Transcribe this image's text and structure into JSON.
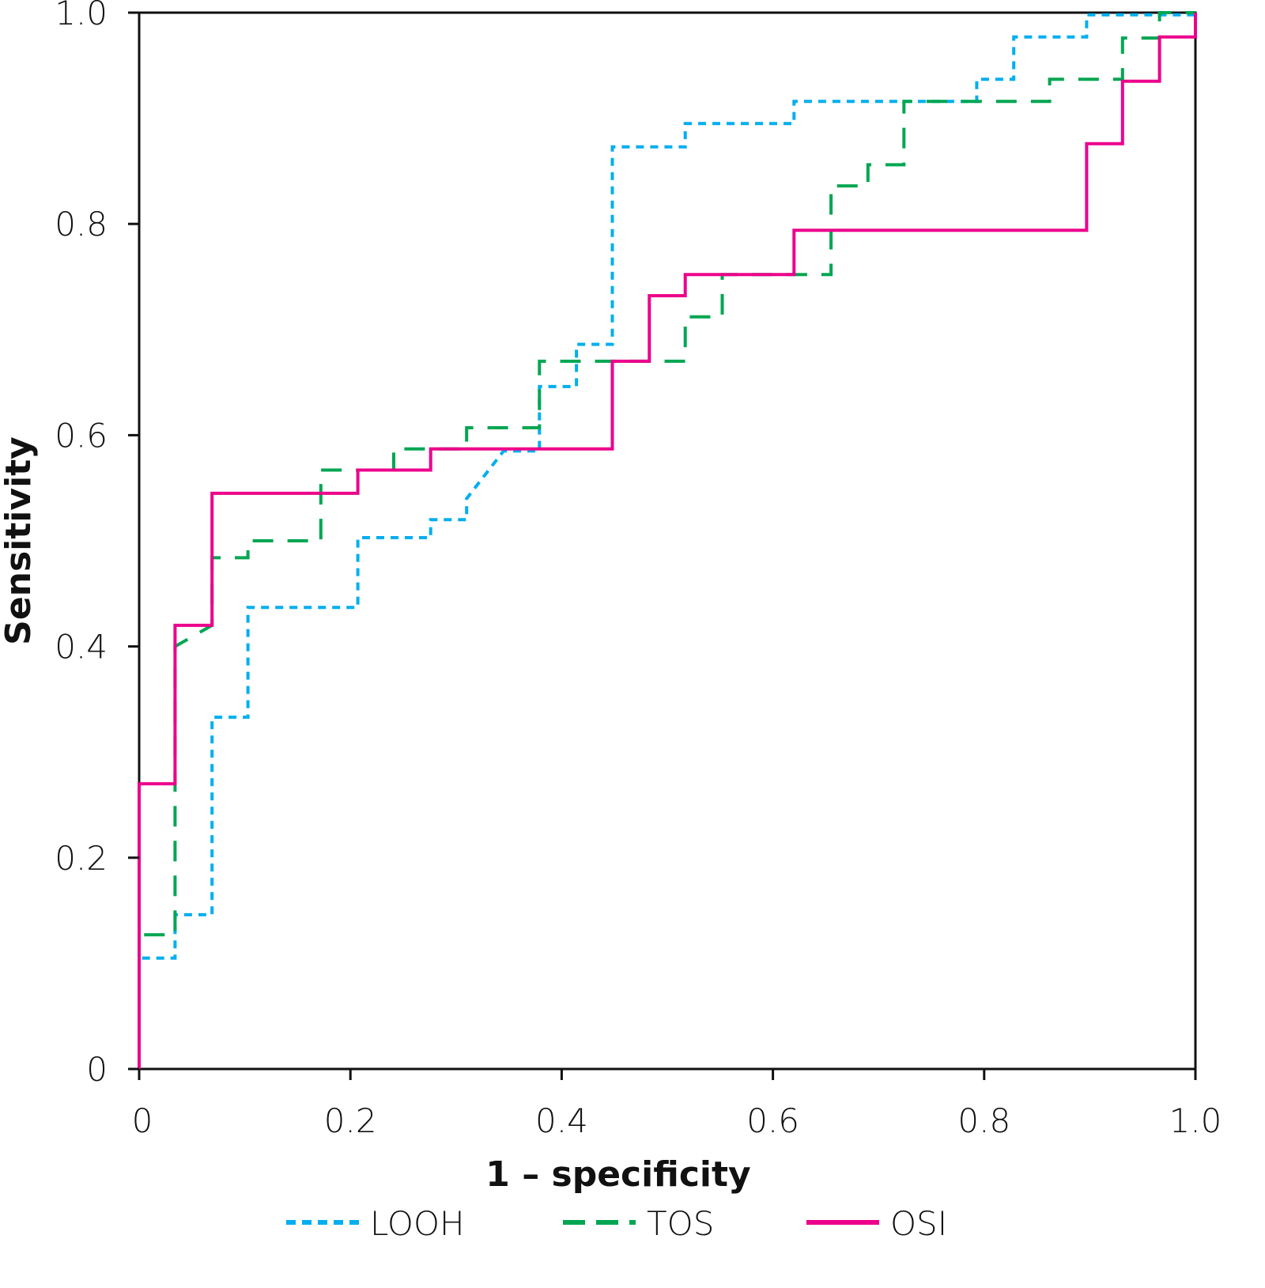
{
  "chart_data": {
    "type": "line",
    "title": "",
    "xlabel": "1 – specificity",
    "ylabel": "Sensitivity",
    "xlim": [
      0,
      1
    ],
    "ylim": [
      0,
      1
    ],
    "xticks": [
      "0",
      "0.2",
      "0.4",
      "0.6",
      "0.8",
      "1.0"
    ],
    "yticks": [
      "0",
      "0.2",
      "0.4",
      "0.6",
      "0.8",
      "1.0"
    ],
    "grid": false,
    "legend_position": "bottom",
    "series": [
      {
        "name": "LOOH",
        "color": "#00AEEF",
        "style": "dotted",
        "points": [
          [
            0,
            0
          ],
          [
            0,
            0.105
          ],
          [
            0.034,
            0.105
          ],
          [
            0.034,
            0.146
          ],
          [
            0.069,
            0.146
          ],
          [
            0.069,
            0.333
          ],
          [
            0.103,
            0.333
          ],
          [
            0.103,
            0.437
          ],
          [
            0.207,
            0.437
          ],
          [
            0.207,
            0.503
          ],
          [
            0.276,
            0.503
          ],
          [
            0.276,
            0.52
          ],
          [
            0.31,
            0.52
          ],
          [
            0.31,
            0.54
          ],
          [
            0.345,
            0.585
          ],
          [
            0.379,
            0.585
          ],
          [
            0.379,
            0.646
          ],
          [
            0.414,
            0.646
          ],
          [
            0.414,
            0.686
          ],
          [
            0.448,
            0.686
          ],
          [
            0.448,
            0.873
          ],
          [
            0.517,
            0.873
          ],
          [
            0.517,
            0.895
          ],
          [
            0.62,
            0.895
          ],
          [
            0.62,
            0.916
          ],
          [
            0.793,
            0.916
          ],
          [
            0.793,
            0.937
          ],
          [
            0.828,
            0.937
          ],
          [
            0.828,
            0.977
          ],
          [
            0.897,
            0.977
          ],
          [
            0.897,
            0.998
          ],
          [
            1,
            0.998
          ],
          [
            1,
            1
          ]
        ]
      },
      {
        "name": "TOS",
        "color": "#00A651",
        "style": "dashed",
        "points": [
          [
            0,
            0
          ],
          [
            0,
            0.127
          ],
          [
            0.034,
            0.127
          ],
          [
            0.034,
            0.4
          ],
          [
            0.069,
            0.42
          ],
          [
            0.069,
            0.484
          ],
          [
            0.103,
            0.484
          ],
          [
            0.103,
            0.5
          ],
          [
            0.172,
            0.5
          ],
          [
            0.172,
            0.567
          ],
          [
            0.241,
            0.567
          ],
          [
            0.241,
            0.587
          ],
          [
            0.31,
            0.587
          ],
          [
            0.31,
            0.607
          ],
          [
            0.379,
            0.607
          ],
          [
            0.379,
            0.67
          ],
          [
            0.517,
            0.67
          ],
          [
            0.517,
            0.712
          ],
          [
            0.552,
            0.712
          ],
          [
            0.552,
            0.752
          ],
          [
            0.655,
            0.752
          ],
          [
            0.655,
            0.836
          ],
          [
            0.69,
            0.836
          ],
          [
            0.69,
            0.856
          ],
          [
            0.724,
            0.856
          ],
          [
            0.724,
            0.916
          ],
          [
            0.862,
            0.916
          ],
          [
            0.862,
            0.937
          ],
          [
            0.931,
            0.937
          ],
          [
            0.931,
            0.976
          ],
          [
            0.966,
            0.976
          ],
          [
            0.966,
            1
          ],
          [
            1,
            1
          ]
        ]
      },
      {
        "name": "OSI",
        "color": "#EC008C",
        "style": "solid",
        "points": [
          [
            0,
            0
          ],
          [
            0,
            0.27
          ],
          [
            0.034,
            0.27
          ],
          [
            0.034,
            0.42
          ],
          [
            0.069,
            0.42
          ],
          [
            0.069,
            0.545
          ],
          [
            0.207,
            0.545
          ],
          [
            0.207,
            0.567
          ],
          [
            0.276,
            0.567
          ],
          [
            0.276,
            0.587
          ],
          [
            0.448,
            0.587
          ],
          [
            0.448,
            0.67
          ],
          [
            0.483,
            0.67
          ],
          [
            0.483,
            0.732
          ],
          [
            0.517,
            0.732
          ],
          [
            0.517,
            0.752
          ],
          [
            0.62,
            0.752
          ],
          [
            0.62,
            0.794
          ],
          [
            0.897,
            0.794
          ],
          [
            0.897,
            0.876
          ],
          [
            0.931,
            0.876
          ],
          [
            0.931,
            0.935
          ],
          [
            0.966,
            0.935
          ],
          [
            0.966,
            0.977
          ],
          [
            1,
            0.977
          ],
          [
            1,
            1
          ]
        ]
      }
    ]
  }
}
